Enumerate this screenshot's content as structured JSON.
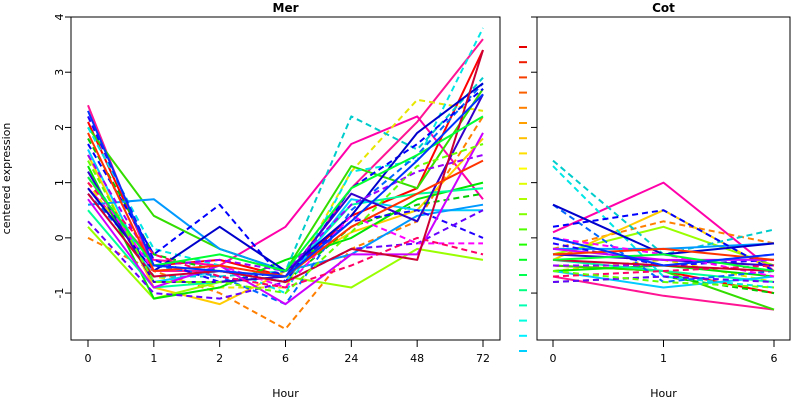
{
  "chart_data": [
    {
      "type": "line",
      "title": "Mer",
      "xlabel": "Hour",
      "ylabel": "centered expression",
      "categories": [
        "0",
        "1",
        "2",
        "6",
        "24",
        "48",
        "72"
      ],
      "ylim": [
        -1.85,
        4
      ],
      "yticks": [
        -1,
        0,
        1,
        2,
        3,
        4
      ],
      "series": [
        {
          "color": "#ff0000",
          "dash": false,
          "values": [
            2.1,
            -0.5,
            -0.4,
            -0.7,
            0.4,
            0.9,
            3.4
          ]
        },
        {
          "color": "#ff1493",
          "dash": false,
          "values": [
            2.4,
            -0.6,
            -0.6,
            -0.8,
            0.9,
            2.1,
            3.6
          ]
        },
        {
          "color": "#ff00aa",
          "dash": false,
          "values": [
            0.9,
            -0.4,
            -0.5,
            0.2,
            1.7,
            2.2,
            0.7
          ]
        },
        {
          "color": "#ff7f00",
          "dash": true,
          "values": [
            0.0,
            -0.6,
            -1.0,
            -1.65,
            -0.2,
            0.3,
            2.2
          ]
        },
        {
          "color": "#ffcc00",
          "dash": false,
          "values": [
            1.5,
            -0.9,
            -1.2,
            -0.6,
            0.1,
            0.5,
            1.8
          ]
        },
        {
          "color": "#e6e600",
          "dash": true,
          "values": [
            1.0,
            -0.7,
            -0.9,
            -0.9,
            1.2,
            2.5,
            2.3
          ]
        },
        {
          "color": "#99ff00",
          "dash": false,
          "values": [
            0.2,
            -1.1,
            -0.8,
            -0.7,
            -0.9,
            -0.2,
            -0.4
          ]
        },
        {
          "color": "#33dd00",
          "dash": false,
          "values": [
            2.0,
            0.4,
            -0.2,
            -0.6,
            1.3,
            0.9,
            2.7
          ]
        },
        {
          "color": "#00cc00",
          "dash": true,
          "values": [
            1.8,
            -0.3,
            -0.6,
            -0.8,
            0.2,
            0.6,
            0.8
          ]
        },
        {
          "color": "#00e600",
          "dash": false,
          "values": [
            1.3,
            -1.1,
            -0.9,
            -0.4,
            0.0,
            0.7,
            1.0
          ]
        },
        {
          "color": "#00ff99",
          "dash": false,
          "values": [
            0.5,
            -0.9,
            -0.8,
            -0.7,
            0.6,
            0.8,
            0.9
          ]
        },
        {
          "color": "#00cccc",
          "dash": true,
          "values": [
            1.2,
            -0.7,
            -0.7,
            -0.6,
            2.2,
            1.6,
            2.9
          ]
        },
        {
          "color": "#00e6e6",
          "dash": true,
          "values": [
            2.0,
            -0.2,
            -0.5,
            -1.0,
            1.2,
            1.4,
            3.8
          ]
        },
        {
          "color": "#00ccff",
          "dash": false,
          "values": [
            1.6,
            -0.8,
            -0.6,
            -0.8,
            0.7,
            0.5,
            0.5
          ]
        },
        {
          "color": "#0099ff",
          "dash": false,
          "values": [
            0.6,
            0.7,
            -0.2,
            -0.6,
            -0.3,
            0.4,
            0.6
          ]
        },
        {
          "color": "#0066ff",
          "dash": true,
          "values": [
            0.8,
            -0.5,
            -0.7,
            -1.2,
            0.5,
            1.5,
            2.8
          ]
        },
        {
          "color": "#0000ff",
          "dash": true,
          "values": [
            1.7,
            -0.3,
            0.6,
            -0.8,
            0.9,
            1.7,
            2.7
          ]
        },
        {
          "color": "#0000cc",
          "dash": false,
          "values": [
            0.9,
            -0.6,
            0.2,
            -0.6,
            0.4,
            1.9,
            2.8
          ]
        },
        {
          "color": "#2200ff",
          "dash": true,
          "values": [
            2.2,
            -0.4,
            -0.8,
            -0.6,
            0.3,
            0.5,
            0.0
          ]
        },
        {
          "color": "#3300cc",
          "dash": false,
          "values": [
            1.2,
            -0.8,
            -0.8,
            -0.7,
            0.8,
            0.3,
            2.6
          ]
        },
        {
          "color": "#6600ff",
          "dash": true,
          "values": [
            0.3,
            -1.0,
            -1.1,
            -0.8,
            -0.2,
            -0.1,
            0.5
          ]
        },
        {
          "color": "#9900ff",
          "dash": true,
          "values": [
            1.5,
            -0.5,
            -0.4,
            -0.6,
            0.6,
            1.2,
            1.5
          ]
        },
        {
          "color": "#cc00ff",
          "dash": false,
          "values": [
            0.7,
            -0.9,
            -0.5,
            -1.2,
            -0.3,
            -0.3,
            1.9
          ]
        },
        {
          "color": "#ff00ff",
          "dash": true,
          "values": [
            1.1,
            -0.6,
            -0.5,
            -0.9,
            0.4,
            -0.1,
            -0.1
          ]
        },
        {
          "color": "#ff0066",
          "dash": true,
          "values": [
            1.0,
            -0.3,
            -0.7,
            -0.9,
            -0.5,
            0.0,
            -0.3
          ]
        },
        {
          "color": "#cc0033",
          "dash": false,
          "values": [
            0.8,
            -0.7,
            -0.6,
            -0.8,
            -0.2,
            -0.4,
            3.4
          ]
        },
        {
          "color": "#ff3300",
          "dash": false,
          "values": [
            1.9,
            -0.6,
            -0.5,
            -0.7,
            0.2,
            0.8,
            1.4
          ]
        },
        {
          "color": "#66ff00",
          "dash": true,
          "values": [
            1.4,
            -0.8,
            -0.8,
            -1.0,
            0.1,
            1.3,
            1.7
          ]
        },
        {
          "color": "#00ff33",
          "dash": false,
          "values": [
            1.1,
            -0.5,
            -0.3,
            -0.6,
            0.9,
            1.5,
            2.2
          ]
        },
        {
          "color": "#0033ff",
          "dash": false,
          "values": [
            2.3,
            -0.5,
            -0.6,
            -0.7,
            0.3,
            1.4,
            2.6
          ]
        }
      ]
    },
    {
      "type": "line",
      "title": "Cot",
      "xlabel": "Hour",
      "ylabel": "",
      "categories": [
        "0",
        "1",
        "6"
      ],
      "ylim": [
        -1.85,
        4
      ],
      "series": [
        {
          "color": "#ff0000",
          "dash": false,
          "values": [
            -0.5,
            -0.6,
            -1.0
          ]
        },
        {
          "color": "#ff1493",
          "dash": false,
          "values": [
            -0.7,
            -1.05,
            -1.3
          ]
        },
        {
          "color": "#ff00aa",
          "dash": false,
          "values": [
            0.1,
            1.0,
            -0.6
          ]
        },
        {
          "color": "#ff7f00",
          "dash": true,
          "values": [
            -0.2,
            0.3,
            -0.1
          ]
        },
        {
          "color": "#ffcc00",
          "dash": false,
          "values": [
            -0.4,
            0.5,
            -0.6
          ]
        },
        {
          "color": "#e6e600",
          "dash": true,
          "values": [
            -0.6,
            -0.4,
            -0.8
          ]
        },
        {
          "color": "#99ff00",
          "dash": false,
          "values": [
            -0.3,
            0.2,
            -0.5
          ]
        },
        {
          "color": "#33dd00",
          "dash": false,
          "values": [
            -0.5,
            -0.6,
            -1.3
          ]
        },
        {
          "color": "#00cc00",
          "dash": true,
          "values": [
            -0.8,
            -0.7,
            -1.0
          ]
        },
        {
          "color": "#00e600",
          "dash": false,
          "values": [
            -0.6,
            -0.5,
            -0.7
          ]
        },
        {
          "color": "#00ff99",
          "dash": false,
          "values": [
            -0.4,
            -0.6,
            -0.8
          ]
        },
        {
          "color": "#00cccc",
          "dash": true,
          "values": [
            1.4,
            -0.3,
            0.15
          ]
        },
        {
          "color": "#00e6e6",
          "dash": true,
          "values": [
            1.3,
            -0.7,
            -0.9
          ]
        },
        {
          "color": "#00ccff",
          "dash": false,
          "values": [
            -0.6,
            -0.9,
            -0.7
          ]
        },
        {
          "color": "#0099ff",
          "dash": false,
          "values": [
            -0.2,
            -0.2,
            -0.1
          ]
        },
        {
          "color": "#0066ff",
          "dash": true,
          "values": [
            0.6,
            -0.8,
            -0.6
          ]
        },
        {
          "color": "#0000ff",
          "dash": true,
          "values": [
            0.2,
            0.5,
            -0.6
          ]
        },
        {
          "color": "#0000cc",
          "dash": false,
          "values": [
            0.6,
            -0.3,
            -0.1
          ]
        },
        {
          "color": "#2200ff",
          "dash": true,
          "values": [
            -0.1,
            -0.5,
            -0.4
          ]
        },
        {
          "color": "#3300cc",
          "dash": false,
          "values": [
            -0.3,
            -0.4,
            -0.5
          ]
        },
        {
          "color": "#6600ff",
          "dash": true,
          "values": [
            -0.8,
            -0.7,
            -0.8
          ]
        },
        {
          "color": "#9900ff",
          "dash": true,
          "values": [
            -0.5,
            -0.5,
            -0.3
          ]
        },
        {
          "color": "#cc00ff",
          "dash": false,
          "values": [
            -0.2,
            -0.4,
            -0.4
          ]
        },
        {
          "color": "#ff00ff",
          "dash": true,
          "values": [
            0.0,
            -0.3,
            -0.7
          ]
        },
        {
          "color": "#ff0066",
          "dash": true,
          "values": [
            -0.7,
            -0.6,
            -0.5
          ]
        },
        {
          "color": "#cc0033",
          "dash": false,
          "values": [
            -0.4,
            -0.5,
            -0.6
          ]
        },
        {
          "color": "#ff3300",
          "dash": false,
          "values": [
            -0.3,
            -0.2,
            -0.4
          ]
        },
        {
          "color": "#66ff00",
          "dash": true,
          "values": [
            -0.6,
            -0.8,
            -0.9
          ]
        },
        {
          "color": "#00ff33",
          "dash": false,
          "values": [
            -0.4,
            -0.3,
            -0.6
          ]
        },
        {
          "color": "#0033ff",
          "dash": false,
          "values": [
            0.0,
            -0.5,
            -0.3
          ]
        }
      ]
    }
  ],
  "color_key": {
    "type": "dash-strip",
    "colors": [
      "#e60000",
      "#ee1c00",
      "#f53d00",
      "#fa6000",
      "#ff8000",
      "#ffa000",
      "#ffc000",
      "#ffdf00",
      "#ffff00",
      "#dfff00",
      "#b0ff00",
      "#80ff00",
      "#50ff00",
      "#20ff00",
      "#00ff20",
      "#00ff50",
      "#00ff80",
      "#00ffb0",
      "#00ffdf",
      "#00f0ff",
      "#00d0ff"
    ]
  }
}
